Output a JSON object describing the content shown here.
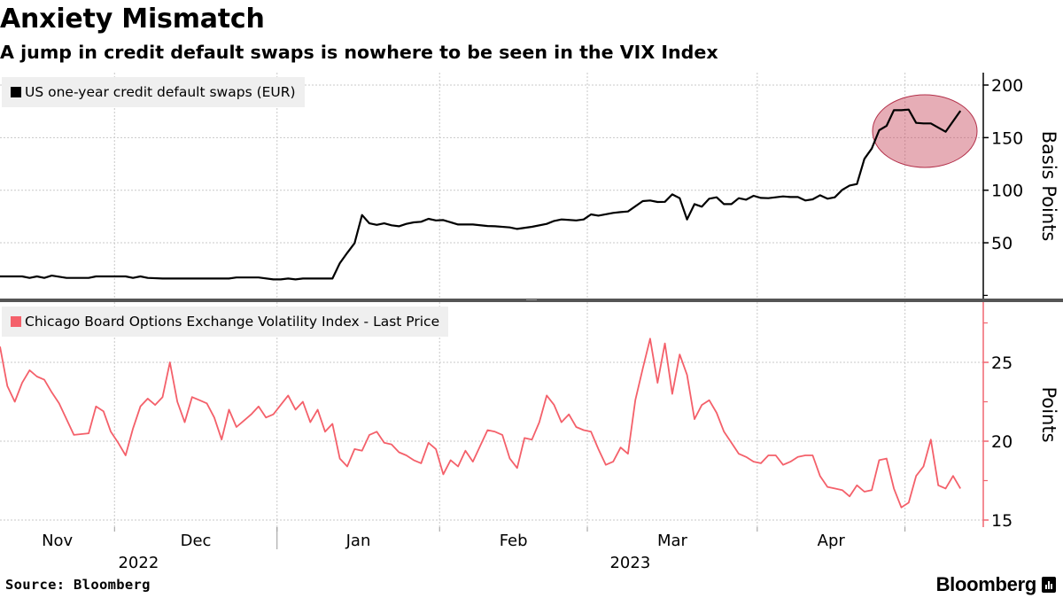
{
  "title": "Anxiety Mismatch",
  "subtitle": "A jump in credit default swaps is nowhere to be seen in the VIX Index",
  "source": "Source: Bloomberg",
  "logo": "Bloomberg",
  "x_axis": {
    "months": [
      "Nov",
      "Dec",
      "Jan",
      "Feb",
      "Mar",
      "Apr"
    ],
    "years": [
      "2022",
      "2023"
    ]
  },
  "chart_data": [
    {
      "type": "line",
      "legend": "US one-year credit default swaps (EUR)",
      "ylabel": "Basis Points",
      "yticks": [
        50,
        100,
        150,
        200
      ],
      "ylim": [
        -3,
        212
      ],
      "grid": true,
      "legend_position": "top-left",
      "color": "#000000",
      "highlight_color": "#c84a5e",
      "series": [
        [
          "2022-11-09",
          18
        ],
        [
          "2022-11-14",
          18
        ],
        [
          "2022-11-15",
          16.6
        ],
        [
          "2022-11-16",
          18
        ],
        [
          "2022-11-17",
          16.6
        ],
        [
          "2022-11-18",
          18.8
        ],
        [
          "2022-11-22",
          16.6
        ],
        [
          "2022-11-25",
          16.6
        ],
        [
          "2022-11-28",
          18
        ],
        [
          "2022-12-02",
          18
        ],
        [
          "2022-12-05",
          16.6
        ],
        [
          "2022-12-06",
          18
        ],
        [
          "2022-12-07",
          16.6
        ],
        [
          "2022-12-09",
          16
        ],
        [
          "2022-12-22",
          16
        ],
        [
          "2022-12-23",
          17
        ],
        [
          "2022-12-28",
          17
        ],
        [
          "2022-12-30",
          15.2
        ],
        [
          "2023-01-02",
          15.2
        ],
        [
          "2023-01-03",
          16
        ],
        [
          "2023-01-04",
          15.2
        ],
        [
          "2023-01-05",
          16
        ],
        [
          "2023-01-11",
          16
        ],
        [
          "2023-01-12",
          30.6
        ],
        [
          "2023-01-13",
          40.4
        ],
        [
          "2023-01-16",
          49.7
        ],
        [
          "2023-01-17",
          76.4
        ],
        [
          "2023-01-18",
          68.5
        ],
        [
          "2023-01-19",
          67.1
        ],
        [
          "2023-01-20",
          68.5
        ],
        [
          "2023-01-23",
          66.6
        ],
        [
          "2023-01-24",
          65.7
        ],
        [
          "2023-01-25",
          68
        ],
        [
          "2023-01-26",
          69.4
        ],
        [
          "2023-01-27",
          70
        ],
        [
          "2023-01-30",
          72.8
        ],
        [
          "2023-01-31",
          71.3
        ],
        [
          "2023-02-01",
          71.6
        ],
        [
          "2023-02-03",
          67.4
        ],
        [
          "2023-02-07",
          67.4
        ],
        [
          "2023-02-09",
          66
        ],
        [
          "2023-02-10",
          65.7
        ],
        [
          "2023-02-14",
          64.6
        ],
        [
          "2023-02-15",
          63.2
        ],
        [
          "2023-02-17",
          65.2
        ],
        [
          "2023-02-21",
          68
        ],
        [
          "2023-02-22",
          70.8
        ],
        [
          "2023-02-23",
          72.2
        ],
        [
          "2023-02-27",
          71.3
        ],
        [
          "2023-02-28",
          72.2
        ],
        [
          "2023-03-01",
          77
        ],
        [
          "2023-03-02",
          75.8
        ],
        [
          "2023-03-06",
          78.4
        ],
        [
          "2023-03-07",
          79.2
        ],
        [
          "2023-03-08",
          79.8
        ],
        [
          "2023-03-10",
          89.6
        ],
        [
          "2023-03-13",
          90.2
        ],
        [
          "2023-03-14",
          88.8
        ],
        [
          "2023-03-15",
          89
        ],
        [
          "2023-03-16",
          96
        ],
        [
          "2023-03-17",
          92.4
        ],
        [
          "2023-03-20",
          72.2
        ],
        [
          "2023-03-21",
          86.8
        ],
        [
          "2023-03-22",
          84.3
        ],
        [
          "2023-03-23",
          91.9
        ],
        [
          "2023-03-24",
          93.3
        ],
        [
          "2023-03-27",
          86.8
        ],
        [
          "2023-03-28",
          86.8
        ],
        [
          "2023-03-29",
          92.4
        ],
        [
          "2023-03-30",
          91
        ],
        [
          "2023-03-31",
          94.7
        ],
        [
          "2023-04-03",
          92.7
        ],
        [
          "2023-04-04",
          92.4
        ],
        [
          "2023-04-06",
          94.1
        ],
        [
          "2023-04-07",
          93.5
        ],
        [
          "2023-04-10",
          93.5
        ],
        [
          "2023-04-11",
          90.2
        ],
        [
          "2023-04-12",
          91.3
        ],
        [
          "2023-04-13",
          95.2
        ],
        [
          "2023-04-14",
          91.9
        ],
        [
          "2023-04-17",
          93.3
        ],
        [
          "2023-04-18",
          100.3
        ],
        [
          "2023-04-19",
          104.5
        ],
        [
          "2023-04-20",
          105.9
        ],
        [
          "2023-04-21",
          129.8
        ],
        [
          "2023-04-24",
          139.6
        ],
        [
          "2023-04-25",
          157
        ],
        [
          "2023-04-26",
          161.2
        ],
        [
          "2023-04-27",
          176.1
        ],
        [
          "2023-04-28",
          176.1
        ],
        [
          "2023-05-01",
          176.7
        ],
        [
          "2023-05-02",
          164
        ],
        [
          "2023-05-03",
          163.5
        ],
        [
          "2023-05-04",
          163.5
        ],
        [
          "2023-05-08",
          155.6
        ],
        [
          "2023-05-10",
          175.5
        ]
      ]
    },
    {
      "type": "line",
      "legend": "Chicago Board Options Exchange Volatility Index - Last Price",
      "ylabel": "Points",
      "yticks": [
        15,
        20,
        25
      ],
      "ylim": [
        14.6,
        28.7
      ],
      "grid": true,
      "legend_position": "top-left",
      "color": "#f4606a",
      "series": [
        [
          "2022-11-09",
          26.0
        ],
        [
          "2022-11-10",
          23.5
        ],
        [
          "2022-11-11",
          22.5
        ],
        [
          "2022-11-14",
          23.7
        ],
        [
          "2022-11-15",
          24.5
        ],
        [
          "2022-11-16",
          24.1
        ],
        [
          "2022-11-17",
          23.9
        ],
        [
          "2022-11-18",
          23.1
        ],
        [
          "2022-11-21",
          22.4
        ],
        [
          "2022-11-23",
          20.4
        ],
        [
          "2022-11-25",
          20.5
        ],
        [
          "2022-11-28",
          22.2
        ],
        [
          "2022-11-29",
          21.9
        ],
        [
          "2022-11-30",
          20.6
        ],
        [
          "2022-12-01",
          19.9
        ],
        [
          "2022-12-02",
          19.1
        ],
        [
          "2022-12-05",
          20.8
        ],
        [
          "2022-12-06",
          22.2
        ],
        [
          "2022-12-07",
          22.7
        ],
        [
          "2022-12-08",
          22.3
        ],
        [
          "2022-12-09",
          22.8
        ],
        [
          "2022-12-12",
          25.0
        ],
        [
          "2022-12-13",
          22.5
        ],
        [
          "2022-12-14",
          21.2
        ],
        [
          "2022-12-15",
          22.8
        ],
        [
          "2022-12-16",
          22.6
        ],
        [
          "2022-12-19",
          22.4
        ],
        [
          "2022-12-20",
          21.5
        ],
        [
          "2022-12-21",
          20.1
        ],
        [
          "2022-12-22",
          22.0
        ],
        [
          "2022-12-23",
          20.9
        ],
        [
          "2022-12-26",
          21.3
        ],
        [
          "2022-12-27",
          21.7
        ],
        [
          "2022-12-28",
          22.2
        ],
        [
          "2022-12-29",
          21.5
        ],
        [
          "2022-12-30",
          21.7
        ],
        [
          "2023-01-02",
          22.3
        ],
        [
          "2023-01-03",
          22.9
        ],
        [
          "2023-01-04",
          22.0
        ],
        [
          "2023-01-05",
          22.5
        ],
        [
          "2023-01-06",
          21.2
        ],
        [
          "2023-01-09",
          22.0
        ],
        [
          "2023-01-10",
          20.6
        ],
        [
          "2023-01-11",
          21.1
        ],
        [
          "2023-01-12",
          18.9
        ],
        [
          "2023-01-13",
          18.4
        ],
        [
          "2023-01-16",
          19.5
        ],
        [
          "2023-01-17",
          19.4
        ],
        [
          "2023-01-18",
          20.4
        ],
        [
          "2023-01-19",
          20.6
        ],
        [
          "2023-01-20",
          19.9
        ],
        [
          "2023-01-23",
          19.8
        ],
        [
          "2023-01-24",
          19.3
        ],
        [
          "2023-01-25",
          19.1
        ],
        [
          "2023-01-26",
          18.8
        ],
        [
          "2023-01-27",
          18.6
        ],
        [
          "2023-01-30",
          19.9
        ],
        [
          "2023-01-31",
          19.5
        ],
        [
          "2023-02-01",
          17.9
        ],
        [
          "2023-02-02",
          18.8
        ],
        [
          "2023-02-03",
          18.4
        ],
        [
          "2023-02-06",
          19.4
        ],
        [
          "2023-02-07",
          18.7
        ],
        [
          "2023-02-08",
          19.7
        ],
        [
          "2023-02-09",
          20.7
        ],
        [
          "2023-02-10",
          20.6
        ],
        [
          "2023-02-13",
          20.4
        ],
        [
          "2023-02-14",
          18.9
        ],
        [
          "2023-02-15",
          18.3
        ],
        [
          "2023-02-16",
          20.2
        ],
        [
          "2023-02-17",
          20.1
        ],
        [
          "2023-02-20",
          21.2
        ],
        [
          "2023-02-21",
          22.9
        ],
        [
          "2023-02-22",
          22.3
        ],
        [
          "2023-02-23",
          21.2
        ],
        [
          "2023-02-24",
          21.7
        ],
        [
          "2023-02-27",
          20.9
        ],
        [
          "2023-02-28",
          20.7
        ],
        [
          "2023-03-01",
          20.6
        ],
        [
          "2023-03-02",
          19.5
        ],
        [
          "2023-03-03",
          18.5
        ],
        [
          "2023-03-06",
          18.7
        ],
        [
          "2023-03-07",
          19.6
        ],
        [
          "2023-03-08",
          19.2
        ],
        [
          "2023-03-09",
          22.6
        ],
        [
          "2023-03-10",
          24.6
        ],
        [
          "2023-03-13",
          26.5
        ],
        [
          "2023-03-14",
          23.7
        ],
        [
          "2023-03-15",
          26.2
        ],
        [
          "2023-03-16",
          23.0
        ],
        [
          "2023-03-17",
          25.5
        ],
        [
          "2023-03-20",
          24.2
        ],
        [
          "2023-03-21",
          21.4
        ],
        [
          "2023-03-22",
          22.3
        ],
        [
          "2023-03-23",
          22.6
        ],
        [
          "2023-03-24",
          21.8
        ],
        [
          "2023-03-27",
          20.6
        ],
        [
          "2023-03-28",
          19.9
        ],
        [
          "2023-03-29",
          19.2
        ],
        [
          "2023-03-30",
          19.0
        ],
        [
          "2023-03-31",
          18.7
        ],
        [
          "2023-04-03",
          18.6
        ],
        [
          "2023-04-04",
          19.1
        ],
        [
          "2023-04-05",
          19.1
        ],
        [
          "2023-04-06",
          18.5
        ],
        [
          "2023-04-07",
          18.7
        ],
        [
          "2023-04-10",
          19.0
        ],
        [
          "2023-04-11",
          19.1
        ],
        [
          "2023-04-12",
          19.1
        ],
        [
          "2023-04-13",
          17.8
        ],
        [
          "2023-04-14",
          17.1
        ],
        [
          "2023-04-17",
          17.0
        ],
        [
          "2023-04-18",
          16.9
        ],
        [
          "2023-04-19",
          16.5
        ],
        [
          "2023-04-20",
          17.2
        ],
        [
          "2023-04-21",
          16.8
        ],
        [
          "2023-04-24",
          16.9
        ],
        [
          "2023-04-25",
          18.8
        ],
        [
          "2023-04-26",
          18.9
        ],
        [
          "2023-04-27",
          17.0
        ],
        [
          "2023-04-28",
          15.8
        ],
        [
          "2023-05-01",
          16.1
        ],
        [
          "2023-05-02",
          17.8
        ],
        [
          "2023-05-03",
          18.4
        ],
        [
          "2023-05-04",
          20.1
        ],
        [
          "2023-05-05",
          17.2
        ],
        [
          "2023-05-08",
          17.0
        ],
        [
          "2023-05-09",
          17.8
        ],
        [
          "2023-05-10",
          17.0
        ]
      ]
    }
  ]
}
